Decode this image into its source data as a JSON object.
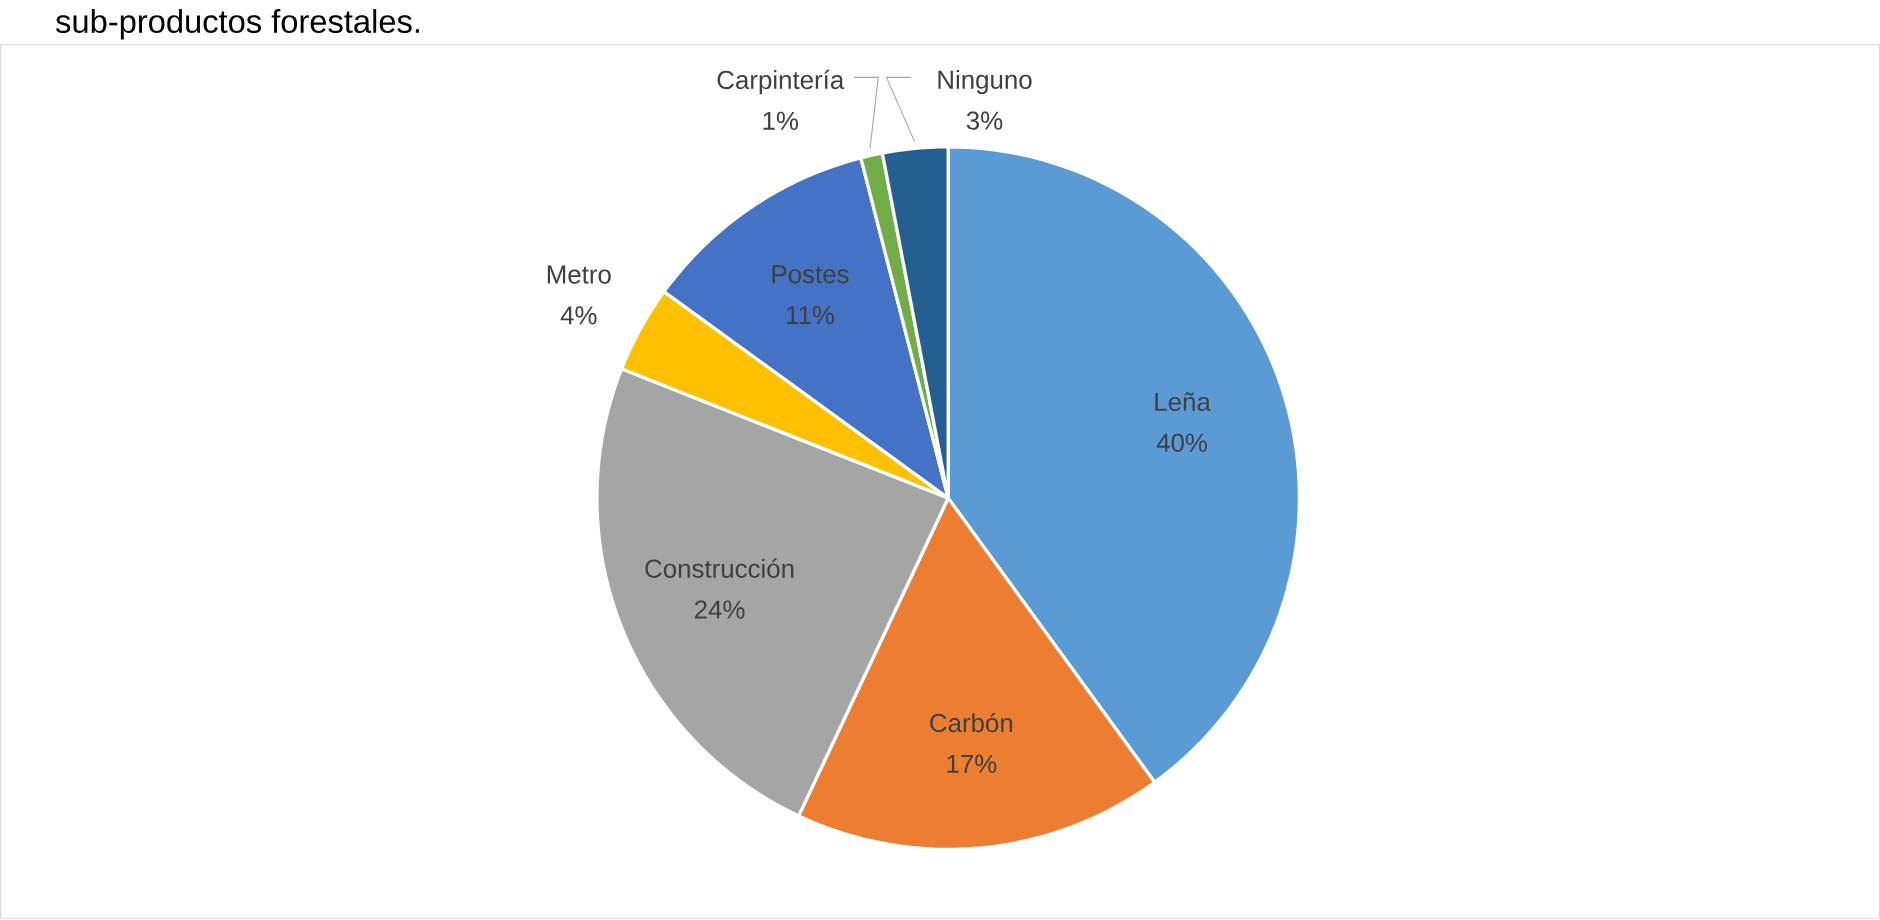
{
  "chart_data": {
    "type": "pie",
    "title": "sub-productos forestales.",
    "categories": [
      "Leña",
      "Carbón",
      "Construcción",
      "Metro",
      "Postes",
      "Carpintería",
      "Ninguno"
    ],
    "values": [
      40,
      17,
      24,
      4,
      11,
      1,
      3
    ],
    "colors": [
      "#5b9bd5",
      "#ed7d31",
      "#a5a5a5",
      "#ffc000",
      "#4472c4",
      "#70ad47",
      "#255e91"
    ],
    "value_labels": [
      "40%",
      "17%",
      "24%",
      "4%",
      "11%",
      "1%",
      "3%"
    ]
  }
}
